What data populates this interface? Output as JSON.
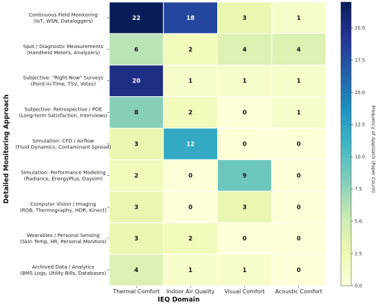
{
  "chart_data": {
    "type": "heatmap",
    "xlabel": "IEQ Domain",
    "ylabel": "Detailed Monitoring Approach",
    "columns": [
      "Thermal Comfort",
      "Indoor Air Quality",
      "Visual Comfort",
      "Acoustic Comfort"
    ],
    "rows": [
      [
        "Continuous Field Monitoring",
        "(IoT, WSN, Dataloggers)"
      ],
      [
        "Spot / Diagnostic Measurements",
        "(Handheld Meters, Analyzers)"
      ],
      [
        "Subjective: \"Right-Now\" Surveys",
        "(Point-in-Time, TSV, Votes)"
      ],
      [
        "Subjective: Retrospective / POE",
        "(Long-term Satisfaction, Interviews)"
      ],
      [
        "Simulation: CFD / Airflow",
        "(Fluid Dynamics, Contaminant Spread)"
      ],
      [
        "Simulation: Performance Modeling",
        "(Radiance, EnergyPlus, Daysim)"
      ],
      [
        "Computer Vision / Imaging",
        "(RGB, Thermography, HDR, Kinect)"
      ],
      [
        "Wearables / Personal Sensing",
        "(Skin Temp, HR, Personal Monitors)"
      ],
      [
        "Archived Data / Analytics",
        "(BMS Logs, Utility Bills, Databases)"
      ]
    ],
    "values": [
      [
        22,
        18,
        3,
        1
      ],
      [
        6,
        2,
        4,
        4
      ],
      [
        20,
        1,
        1,
        1
      ],
      [
        8,
        2,
        0,
        1
      ],
      [
        3,
        12,
        0,
        0
      ],
      [
        2,
        0,
        9,
        0
      ],
      [
        3,
        0,
        3,
        0
      ],
      [
        3,
        2,
        0,
        0
      ],
      [
        4,
        1,
        1,
        0
      ]
    ],
    "colorbar": {
      "label": "Frequency of Approach (Paper Count)",
      "range": [
        0,
        22
      ],
      "ticks": [
        "0.0",
        "2.5",
        "5.0",
        "7.5",
        "10.0",
        "12.5",
        "15.0",
        "17.5",
        "20.0"
      ],
      "colormap": [
        "#ffffd9",
        "#edf8b1",
        "#c7e9b4",
        "#7fcdbb",
        "#41b6c4",
        "#1d91c0",
        "#225ea8",
        "#253494",
        "#081d58"
      ]
    }
  }
}
